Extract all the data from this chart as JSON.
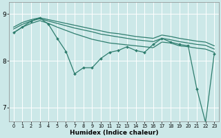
{
  "xlabel": "Humidex (Indice chaleur)",
  "background_color": "#cce8e8",
  "line_color": "#2e7d6e",
  "xlim": [
    -0.5,
    23.5
  ],
  "ylim": [
    6.7,
    9.25
  ],
  "yticks": [
    7,
    8,
    9
  ],
  "xticks": [
    0,
    1,
    2,
    3,
    4,
    5,
    6,
    7,
    8,
    9,
    10,
    11,
    12,
    13,
    14,
    15,
    16,
    17,
    18,
    19,
    20,
    21,
    22,
    23
  ],
  "series": [
    {
      "x": [
        0,
        1,
        2,
        3,
        4,
        5,
        6,
        7,
        8,
        9,
        10,
        11,
        12,
        13,
        14,
        15,
        16,
        17,
        18,
        19,
        20,
        21,
        22,
        23
      ],
      "y": [
        8.72,
        8.82,
        8.88,
        8.92,
        8.88,
        8.84,
        8.8,
        8.76,
        8.72,
        8.68,
        8.64,
        8.6,
        8.58,
        8.55,
        8.52,
        8.5,
        8.48,
        8.55,
        8.52,
        8.48,
        8.45,
        8.42,
        8.4,
        8.32
      ],
      "marker": false,
      "lw": 0.9
    },
    {
      "x": [
        0,
        1,
        2,
        3,
        4,
        5,
        6,
        7,
        8,
        9,
        10,
        11,
        12,
        13,
        14,
        15,
        16,
        17,
        18,
        19,
        20,
        21,
        22,
        23
      ],
      "y": [
        8.68,
        8.78,
        8.85,
        8.9,
        8.85,
        8.8,
        8.75,
        8.7,
        8.66,
        8.62,
        8.57,
        8.54,
        8.51,
        8.48,
        8.45,
        8.43,
        8.41,
        8.48,
        8.45,
        8.41,
        8.38,
        8.35,
        8.33,
        8.25
      ],
      "marker": false,
      "lw": 0.9
    },
    {
      "x": [
        0,
        1,
        2,
        3,
        4,
        5,
        6,
        7,
        8,
        9,
        10,
        11,
        12,
        13,
        14,
        15,
        16,
        17,
        18,
        19,
        20,
        21,
        22,
        23
      ],
      "y": [
        8.6,
        8.72,
        8.8,
        8.86,
        8.8,
        8.72,
        8.65,
        8.58,
        8.52,
        8.46,
        8.42,
        8.38,
        8.36,
        8.34,
        8.32,
        8.3,
        8.28,
        8.4,
        8.38,
        8.32,
        8.3,
        8.27,
        8.25,
        8.18
      ],
      "marker": false,
      "lw": 0.9
    },
    {
      "x": [
        0,
        1,
        2,
        3,
        4,
        5,
        6,
        7,
        8,
        9,
        10,
        11,
        12,
        13,
        14,
        15,
        16,
        17,
        18,
        19,
        20,
        21,
        22,
        23
      ],
      "y": [
        8.6,
        8.72,
        8.85,
        8.92,
        8.78,
        8.48,
        8.2,
        7.72,
        7.85,
        7.85,
        8.05,
        8.18,
        8.22,
        8.3,
        8.22,
        8.18,
        8.35,
        8.48,
        8.4,
        8.35,
        8.32,
        7.4,
        6.68,
        8.15
      ],
      "marker": true,
      "lw": 0.9
    }
  ]
}
